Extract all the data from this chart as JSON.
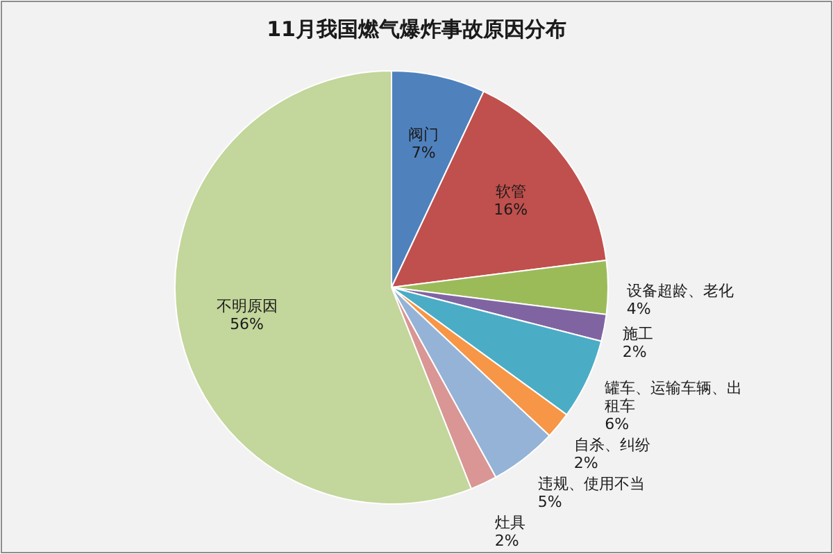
{
  "chart_data": {
    "type": "pie",
    "title": "11月我国燃气爆炸事故原因分布",
    "categories": [
      "阀门",
      "软管",
      "设备超龄、老化",
      "施工",
      "罐车、运输车辆、出租车",
      "自杀、纠纷",
      "违规、使用不当",
      "灶具",
      "不明原因"
    ],
    "values": [
      7,
      16,
      4,
      2,
      6,
      2,
      5,
      2,
      56
    ],
    "colors": [
      "#4f81bd",
      "#c0504d",
      "#9bbb59",
      "#8064a2",
      "#4bacc6",
      "#f79646",
      "#95b3d7",
      "#d99694",
      "#c3d69b"
    ],
    "value_labels": [
      "7%",
      "16%",
      "4%",
      "2%",
      "6%",
      "2%",
      "5%",
      "2%",
      "56%"
    ]
  }
}
